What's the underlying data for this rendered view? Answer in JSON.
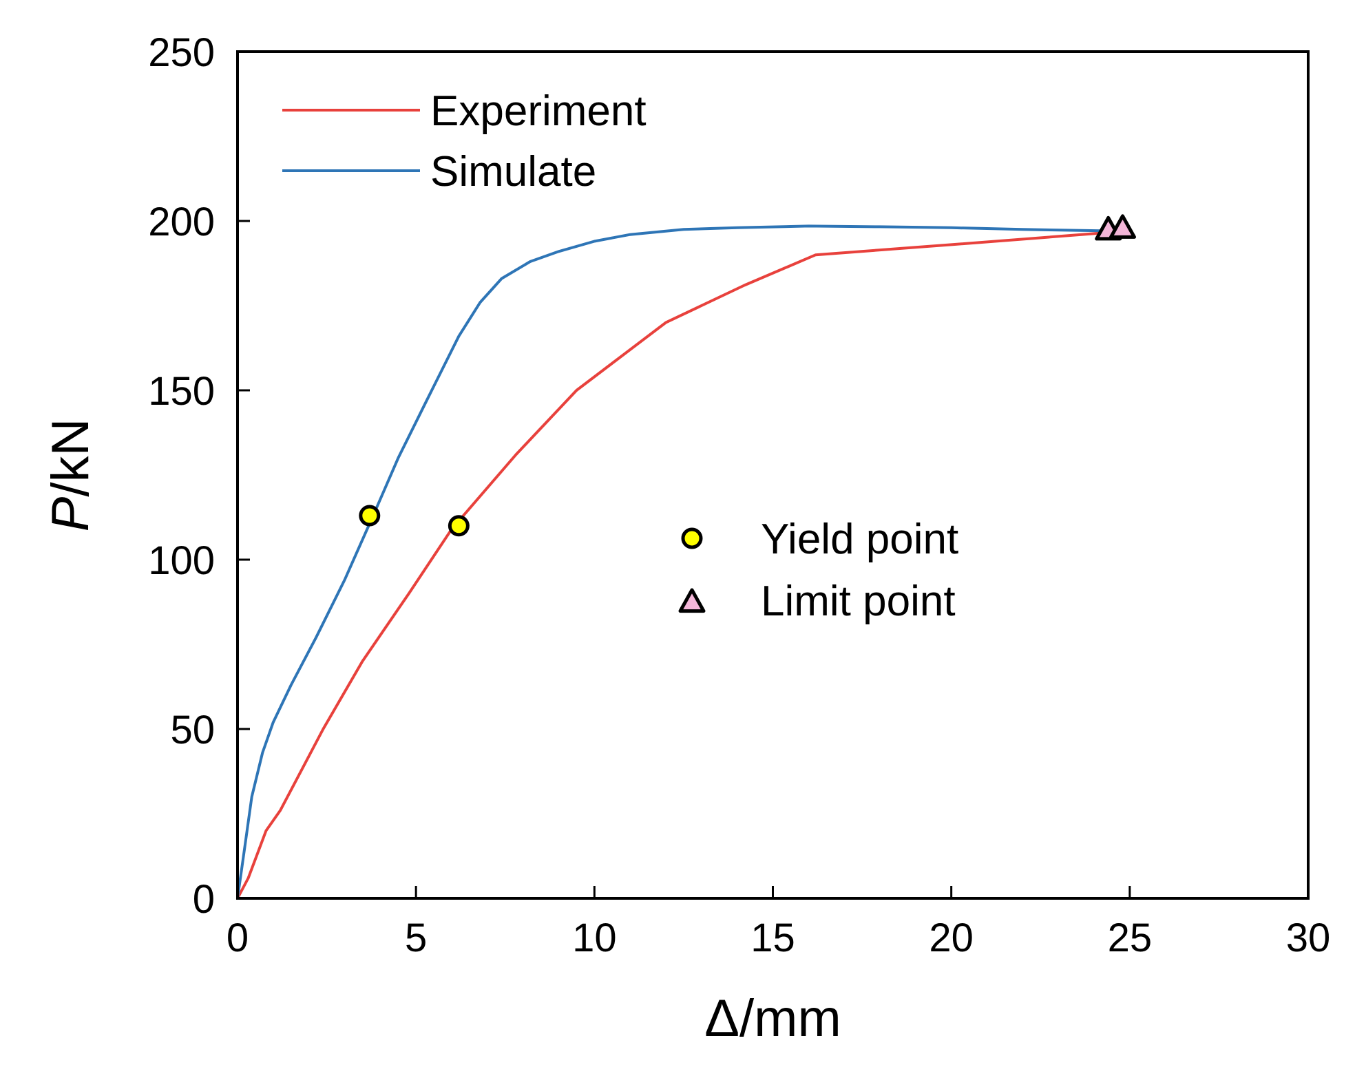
{
  "chart_data": {
    "type": "line",
    "title": "",
    "xlabel": "Δ/mm",
    "ylabel_italic": "P",
    "ylabel_rest": "/kN",
    "xlim": [
      0,
      30
    ],
    "ylim": [
      0,
      250
    ],
    "xticks": [
      0,
      5,
      10,
      15,
      20,
      25,
      30
    ],
    "yticks": [
      0,
      50,
      100,
      150,
      200,
      250
    ],
    "grid": false,
    "legend_position": "top-left",
    "series": [
      {
        "name": "Experiment",
        "color": "#e8413c",
        "x": [
          0,
          0.3,
          0.8,
          1.2,
          2.4,
          3.5,
          4.8,
          6.0,
          7.8,
          9.5,
          12.0,
          14.2,
          16.2,
          20.0,
          24.9
        ],
        "y": [
          0,
          6,
          20,
          26,
          50,
          70,
          90,
          109,
          131,
          150,
          170,
          181,
          190,
          193,
          197
        ]
      },
      {
        "name": "Simulate",
        "color": "#2e75b6",
        "x": [
          0,
          0.2,
          0.4,
          0.7,
          1.0,
          1.5,
          2.2,
          3.0,
          3.8,
          4.5,
          5.3,
          6.2,
          6.8,
          7.4,
          8.2,
          9.0,
          10.0,
          11.0,
          12.5,
          14.0,
          16.0,
          18.0,
          20.0,
          22.0,
          24.8
        ],
        "y": [
          0,
          15,
          30,
          43,
          52,
          63,
          77,
          94,
          113,
          130,
          147,
          166,
          176,
          183,
          188,
          191,
          194,
          196,
          197.5,
          198,
          198.5,
          198.3,
          198,
          197.5,
          197
        ]
      }
    ],
    "markers": [
      {
        "name": "Yield point",
        "shape": "circle",
        "fill": "#ffff00",
        "points": [
          {
            "x": 3.7,
            "y": 113
          },
          {
            "x": 6.2,
            "y": 110
          }
        ]
      },
      {
        "name": "Limit point",
        "shape": "triangle",
        "fill": "#f4b6d9",
        "points": [
          {
            "x": 24.4,
            "y": 197.5
          },
          {
            "x": 24.8,
            "y": 198
          }
        ]
      }
    ],
    "legend_lines": [
      "Experiment",
      "Simulate"
    ],
    "legend_markers": [
      "Yield point",
      "Limit point"
    ]
  }
}
